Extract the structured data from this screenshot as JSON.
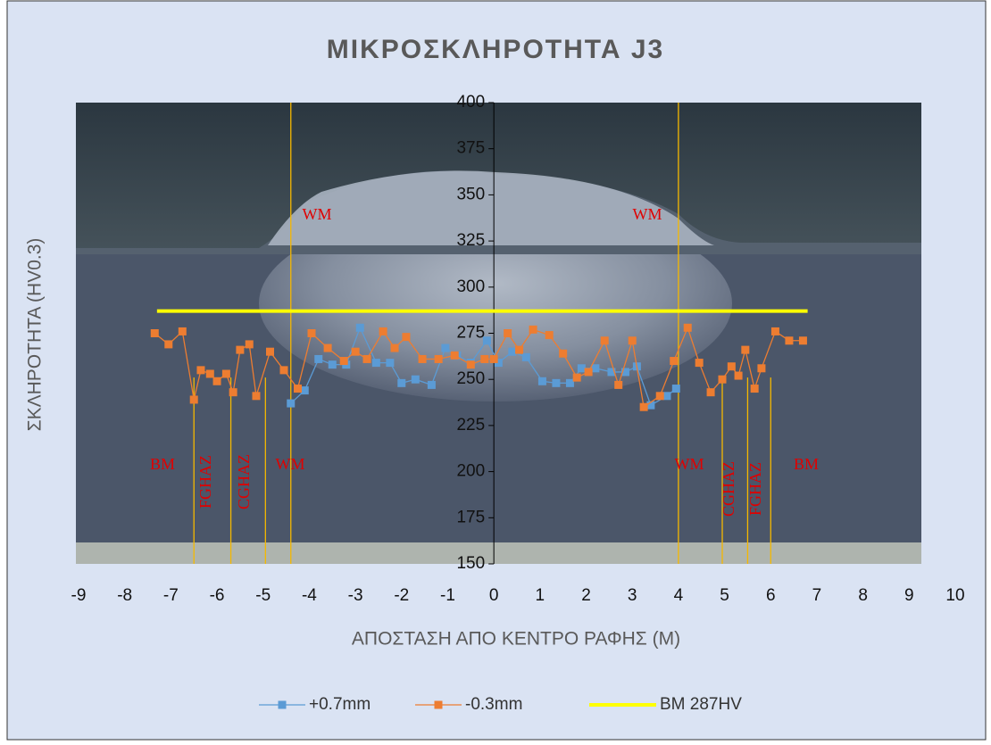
{
  "chart_data": {
    "type": "line",
    "title": "ΜΙΚΡΟΣΚΛΗΡΟΤΗΤΑ J3",
    "x_label": "ΑΠΟΣΤΑΣΗ ΑΠΟ ΚΕΝΤΡΟ ΡΑΦΗΣ (M)",
    "y_label": "ΣΚΛΗΡΟΤΗΤΑ (HV0.3)",
    "xlim": [
      -9,
      10
    ],
    "xticks": [
      -9,
      -8,
      -7,
      -6,
      -5,
      -4,
      -3,
      -2,
      -1,
      0,
      1,
      2,
      3,
      4,
      5,
      6,
      7,
      8,
      9,
      10
    ],
    "ylim": [
      150,
      400
    ],
    "yticks": [
      150,
      175,
      200,
      225,
      250,
      275,
      300,
      325,
      350,
      375,
      400
    ],
    "series": [
      {
        "name": "+0.7mm",
        "color": "#5b9bd5",
        "x": [
          -4.4,
          -4.1,
          -3.8,
          -3.5,
          -3.2,
          -2.9,
          -2.55,
          -2.25,
          -2.0,
          -1.7,
          -1.35,
          -1.05,
          -0.8,
          -0.5,
          -0.15,
          0.1,
          0.4,
          0.7,
          1.05,
          1.35,
          1.65,
          1.9,
          2.2,
          2.55,
          2.85,
          3.1,
          3.4,
          3.75,
          3.95
        ],
        "values": [
          237,
          244,
          261,
          258,
          258,
          278,
          259,
          259,
          248,
          250,
          247,
          267,
          263,
          259,
          271,
          259,
          265,
          262,
          249,
          248,
          248,
          256,
          256,
          254,
          254,
          257,
          236,
          241,
          245
        ]
      },
      {
        "name": "-0.3mm",
        "color": "#ed7d31",
        "x": [
          -7.35,
          -7.05,
          -6.75,
          -6.5,
          -6.35,
          -6.15,
          -6.0,
          -5.8,
          -5.65,
          -5.5,
          -5.3,
          -5.15,
          -4.85,
          -4.55,
          -4.25,
          -3.95,
          -3.6,
          -3.25,
          -3.0,
          -2.75,
          -2.4,
          -2.15,
          -1.9,
          -1.55,
          -1.2,
          -0.85,
          -0.5,
          -0.2,
          0.0,
          0.3,
          0.55,
          0.85,
          1.2,
          1.5,
          1.8,
          2.05,
          2.4,
          2.7,
          3.0,
          3.25,
          3.6,
          3.9,
          4.2,
          4.45,
          4.7,
          4.95,
          5.15,
          5.3,
          5.45,
          5.65,
          5.8,
          6.1,
          6.4,
          6.7
        ],
        "values": [
          275,
          269,
          276,
          239,
          255,
          253,
          249,
          253,
          243,
          266,
          269,
          241,
          265,
          255,
          245,
          275,
          267,
          260,
          265,
          261,
          276,
          267,
          273,
          261,
          261,
          263,
          258,
          261,
          261,
          275,
          266,
          277,
          274,
          264,
          251,
          254,
          271,
          247,
          271,
          235,
          241,
          260,
          278,
          259,
          243,
          250,
          257,
          252,
          266,
          245,
          256,
          276,
          271,
          271
        ]
      },
      {
        "name": "BM 287HV",
        "color": "#ffff00",
        "x": [
          -7.3,
          6.8
        ],
        "values": [
          287,
          287
        ]
      }
    ],
    "zone_lines": [
      -6.5,
      -5.7,
      -4.95,
      -4.4,
      4.0,
      4.95,
      5.5,
      6.0
    ],
    "annotations": [
      "WM",
      "WM",
      "BM",
      "FGHAZ",
      "CGHAZ",
      "WM",
      "WM",
      "CGHAZ",
      "FGHAZ",
      "BM"
    ]
  }
}
